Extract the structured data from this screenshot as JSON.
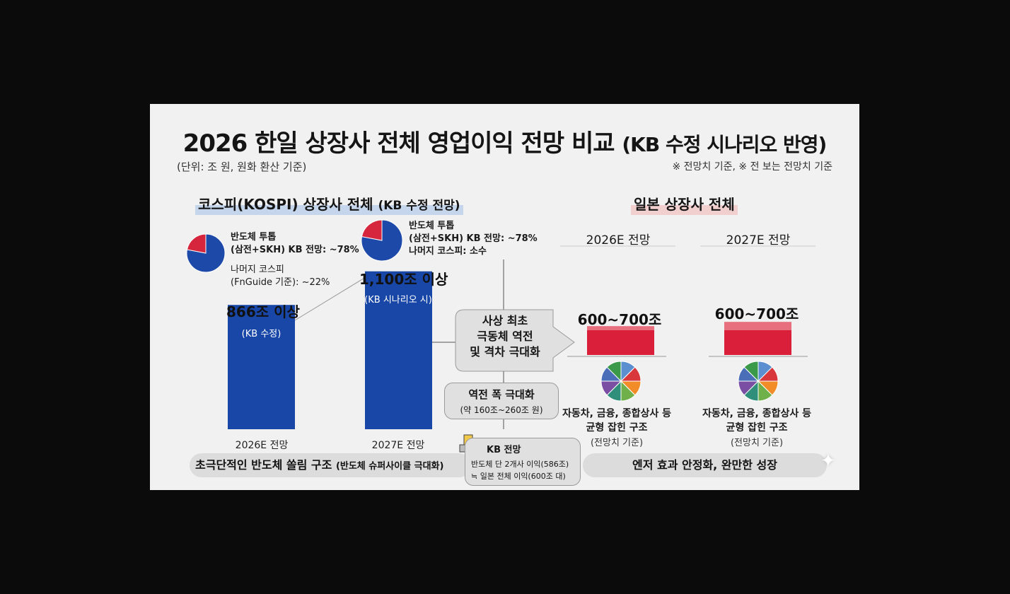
{
  "title": {
    "main": "2026 한일 상장사 전체 영업이익 전망 비교",
    "suffix": "(KB 수정 시나리오 반영)"
  },
  "unit_note": "(단위: 조 원, 원화 환산 기준)",
  "basis_note": "※ 전망치 기준, ※ 전 보는 전망치 기준",
  "kospi": {
    "section_title": "코스피(KOSPI) 상장사 전체",
    "section_suffix": "(KB 수정 전망)",
    "bar1": {
      "value_label": "866조 이상",
      "inner_label": "(KB 수정)",
      "x_label": "2026E 전망",
      "pie_line1": "반도체 투톱",
      "pie_line2": "(삼전+SKH) KB 전망: ~78%",
      "pie_line3": "나머지 코스피",
      "pie_line4": "(FnGuide 기준): ~22%"
    },
    "bar2": {
      "value_label": "1,100조 이상",
      "inner_label": "(KB 시나리오 시)",
      "x_label": "2027E 전망",
      "pie_line1": "반도체 투톱",
      "pie_line2": "(삼전+SKH) KB 전망: ~78%",
      "pie_line3": "나머지 코스피: 소수"
    }
  },
  "middle": {
    "callout1": "사상 최초",
    "callout2": "극동체 역전",
    "callout3": "및 격차 극대화",
    "gap1": "역전 폭 극대화",
    "gap2": "(약 160조~260조 원)",
    "kb_title": "KB 전망",
    "kb_line1": "반도체 단 2개사 이익(586조)",
    "kb_line2": "≒ 일본 전체 이익(600조 대)"
  },
  "japan": {
    "section_title": "일본 상장사 전체",
    "col1": {
      "head": "2026E 전망",
      "value_label": "600~700조",
      "desc1": "자동차, 금융, 종합상사 등",
      "desc2": "균형 잡힌 구조",
      "sub": "(전망치 기준)"
    },
    "col2": {
      "head": "2027E 전망",
      "value_label": "600~700조",
      "desc1": "자동차, 금융, 종합상사 등",
      "desc2": "균형 잡힌 구조",
      "sub": "(전망치 기준)"
    }
  },
  "footer": {
    "left_main": "초극단적인 반도체 쏠림 구조",
    "left_sub": "(반도체 슈퍼사이클 극대화)",
    "right": "엔저 효과 안정화, 완만한 성장"
  },
  "colors": {
    "kospi_bar": "#1847a8",
    "japan_bar": "#d91f3a",
    "japan_bar_light": "#e8707e",
    "semis_slice": "#1d49a8",
    "rest_slice": "#d6263d"
  },
  "chart_data": {
    "type": "bar",
    "categories": [
      "2026E 전망",
      "2027E 전망"
    ],
    "series": [
      {
        "name": "코스피(KOSPI) 상장사 전체",
        "values": [
          866,
          1100
        ]
      },
      {
        "name": "일본 상장사 전체",
        "values": [
          600,
          600
        ],
        "range_upper": [
          700,
          700
        ]
      }
    ],
    "ylim": [
      0,
      1150
    ],
    "pies": [
      {
        "values": [
          78,
          22
        ]
      },
      {
        "values": [
          78,
          22
        ]
      }
    ],
    "grid": false
  }
}
